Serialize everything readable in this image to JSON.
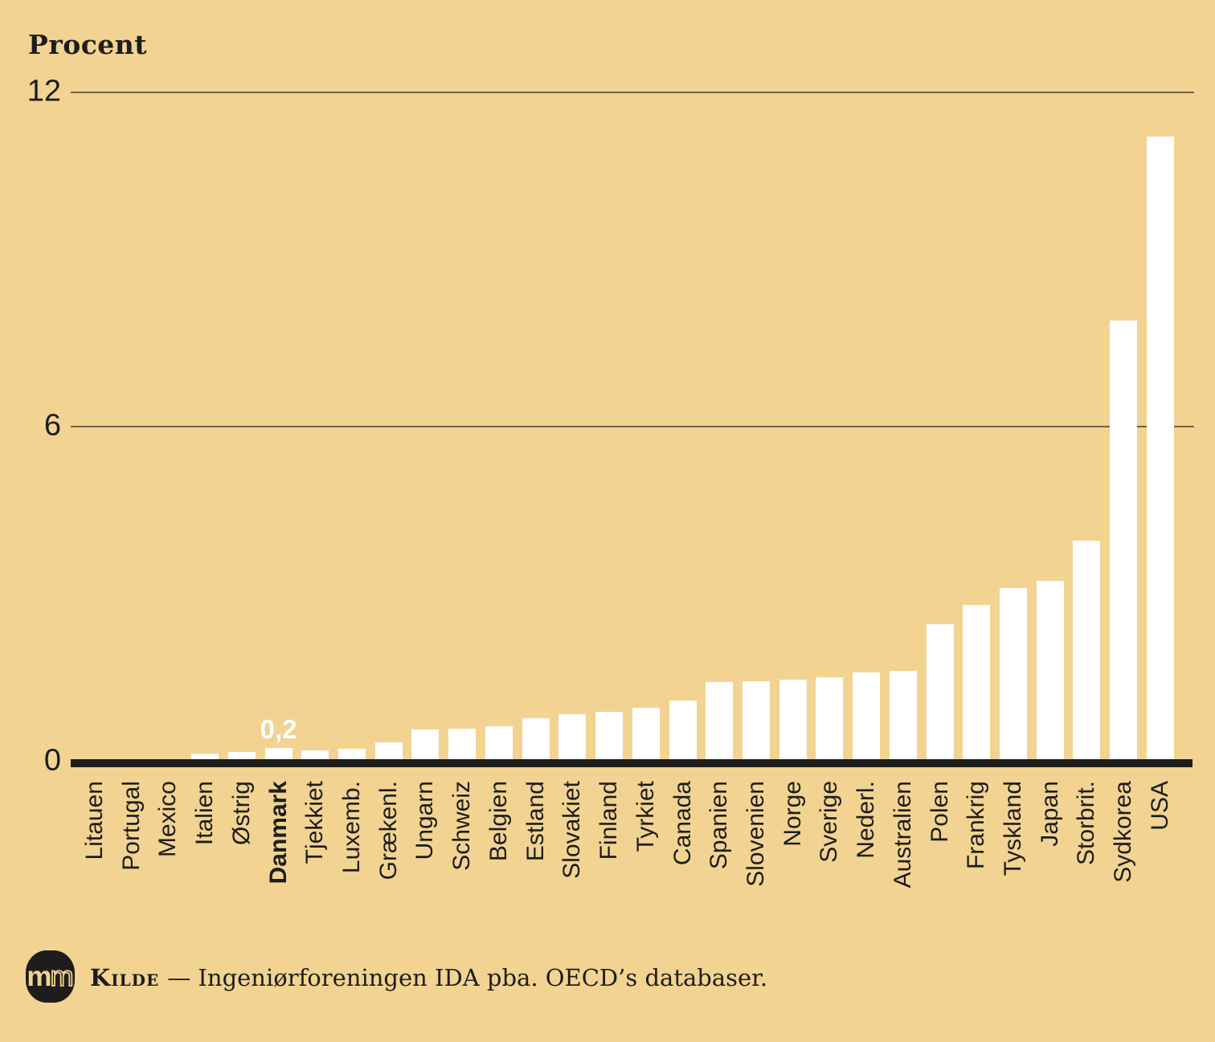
{
  "title": "Procent",
  "y_axis": {
    "ticks": {
      "t12": "12",
      "t6": "6",
      "t0": "0"
    }
  },
  "source": {
    "label": "Kilde",
    "text": "— Ingeniørforeningen IDA pba. OECD’s databaser."
  },
  "logo": {
    "m1": "m",
    "m2": "m"
  },
  "colors": {
    "background": "#F2D391",
    "bar": "#FFFFFF",
    "axis": "#1D1D1B",
    "gridline": "#55503F",
    "value_label": "#FFFFFF"
  },
  "chart_data": {
    "type": "bar",
    "title": "Procent",
    "categories": [
      "Litauen",
      "Portugal",
      "Mexico",
      "Italien",
      "Østrig",
      "Danmark",
      "Tjekkiet",
      "Luxemb.",
      "Grækenl.",
      "Ungarn",
      "Schweiz",
      "Belgien",
      "Estland",
      "Slovakiet",
      "Finland",
      "Tyrkiet",
      "Canada",
      "Spanien",
      "Slovenien",
      "Norge",
      "Sverige",
      "Nederl.",
      "Australien",
      "Polen",
      "Frankrig",
      "Tyskland",
      "Japan",
      "Storbrit.",
      "Sydkorea",
      "USA"
    ],
    "values": [
      0,
      0,
      0,
      0.1,
      0.13,
      0.2,
      0.16,
      0.19,
      0.3,
      0.53,
      0.55,
      0.6,
      0.74,
      0.81,
      0.85,
      0.92,
      1.05,
      1.39,
      1.4,
      1.43,
      1.47,
      1.56,
      1.59,
      2.43,
      2.77,
      3.08,
      3.21,
      3.93,
      7.9,
      11.2
    ],
    "ylabel": "Procent",
    "ylim": [
      0,
      12
    ],
    "yticks": [
      0,
      6,
      12
    ],
    "grid": "horizontal",
    "legend": "none",
    "highlight_category": "Danmark",
    "data_label": {
      "category": "Danmark",
      "text": "0,2"
    }
  }
}
